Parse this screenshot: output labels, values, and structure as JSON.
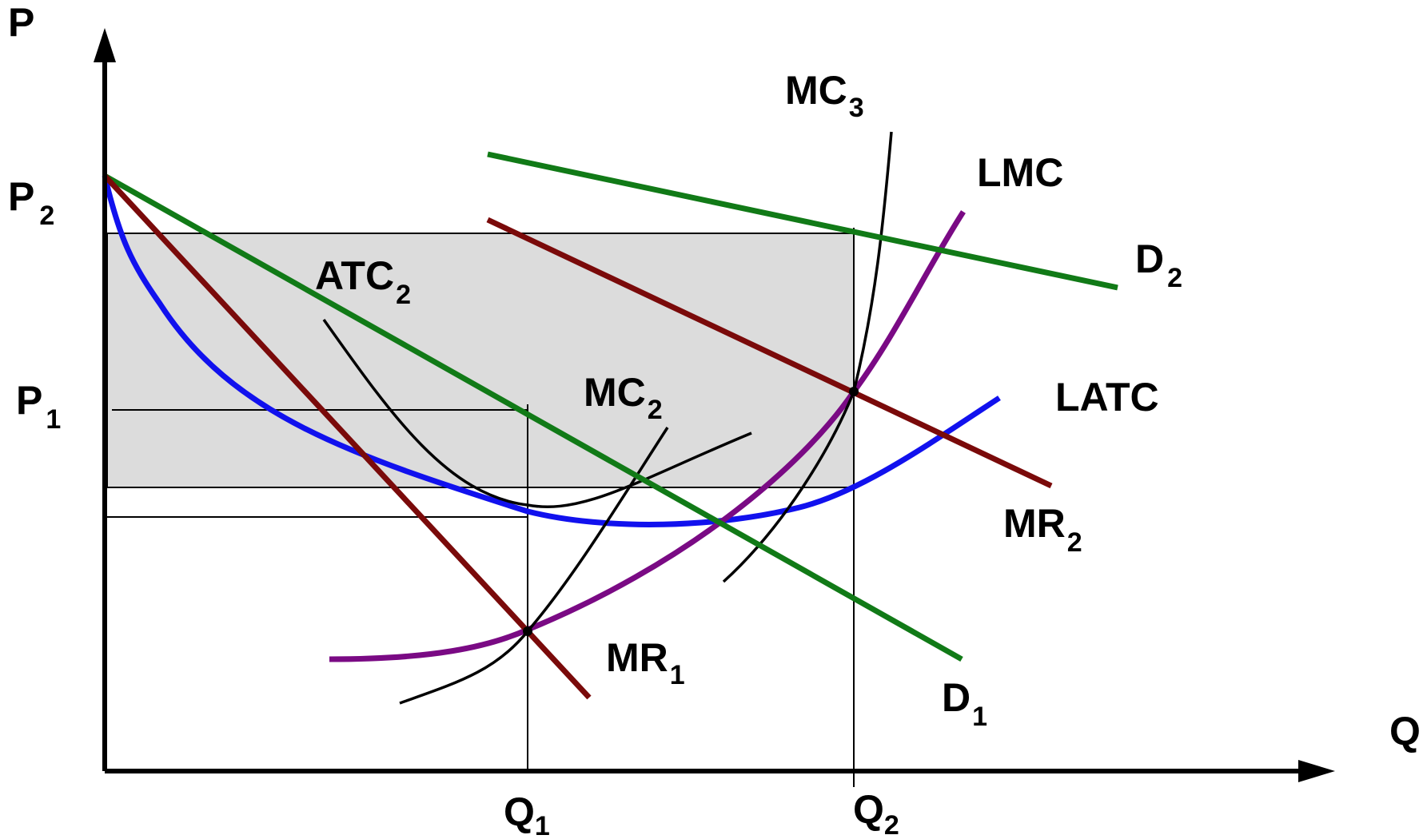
{
  "colors": {
    "axis": "#000000",
    "shading": "#dcdcdc",
    "demand": "#117a17",
    "marginal_revenue": "#7a0a0a",
    "latc": "#1111ee",
    "lmc": "#7a0a84",
    "short_run": "#000000"
  },
  "axes": {
    "y_label": "P",
    "x_label": "Q"
  },
  "ticks": {
    "p2": {
      "main": "P",
      "sub": "2"
    },
    "p1": {
      "main": "P",
      "sub": "1"
    },
    "q1": {
      "main": "Q",
      "sub": "1"
    },
    "q2": {
      "main": "Q",
      "sub": "2"
    }
  },
  "curves": {
    "mc3": {
      "main": "MC",
      "sub": "3"
    },
    "lmc": {
      "main": "LMC",
      "sub": ""
    },
    "d2": {
      "main": "D",
      "sub": "2"
    },
    "atc2": {
      "main": "ATC",
      "sub": "2"
    },
    "mc2": {
      "main": "MC",
      "sub": "2"
    },
    "latc": {
      "main": "LATC",
      "sub": ""
    },
    "mr2": {
      "main": "MR",
      "sub": "2"
    },
    "mr1": {
      "main": "MR",
      "sub": "1"
    },
    "d1": {
      "main": "D",
      "sub": "1"
    }
  }
}
